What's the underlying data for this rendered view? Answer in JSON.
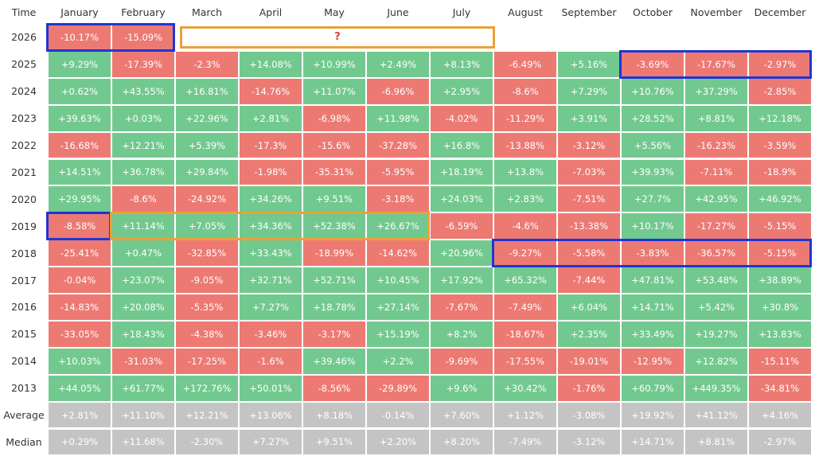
{
  "table": {
    "header": [
      "Time",
      "January",
      "February",
      "March",
      "April",
      "May",
      "June",
      "July",
      "August",
      "September",
      "October",
      "November",
      "December"
    ],
    "current_year": {
      "label": "2026",
      "cells": [
        "-10.17%",
        "-15.09%"
      ],
      "unknown": "?"
    },
    "years": [
      {
        "label": "2025",
        "cells": [
          "+9.29%",
          "-17.39%",
          "-2.3%",
          "+14.08%",
          "+10.99%",
          "+2.49%",
          "+8.13%",
          "-6.49%",
          "+5.16%",
          "-3.69%",
          "-17.67%",
          "-2.97%"
        ]
      },
      {
        "label": "2024",
        "cells": [
          "+0.62%",
          "+43.55%",
          "+16.81%",
          "-14.76%",
          "+11.07%",
          "-6.96%",
          "+2.95%",
          "-8.6%",
          "+7.29%",
          "+10.76%",
          "+37.29%",
          "-2.85%"
        ]
      },
      {
        "label": "2023",
        "cells": [
          "+39.63%",
          "+0.03%",
          "+22.96%",
          "+2.81%",
          "-6.98%",
          "+11.98%",
          "-4.02%",
          "-11.29%",
          "+3.91%",
          "+28.52%",
          "+8.81%",
          "+12.18%"
        ]
      },
      {
        "label": "2022",
        "cells": [
          "-16.68%",
          "+12.21%",
          "+5.39%",
          "-17.3%",
          "-15.6%",
          "-37.28%",
          "+16.8%",
          "-13.88%",
          "-3.12%",
          "+5.56%",
          "-16.23%",
          "-3.59%"
        ]
      },
      {
        "label": "2021",
        "cells": [
          "+14.51%",
          "+36.78%",
          "+29.84%",
          "-1.98%",
          "-35.31%",
          "-5.95%",
          "+18.19%",
          "+13.8%",
          "-7.03%",
          "+39.93%",
          "-7.11%",
          "-18.9%"
        ]
      },
      {
        "label": "2020",
        "cells": [
          "+29.95%",
          "-8.6%",
          "-24.92%",
          "+34.26%",
          "+9.51%",
          "-3.18%",
          "+24.03%",
          "+2.83%",
          "-7.51%",
          "+27.7%",
          "+42.95%",
          "+46.92%"
        ]
      },
      {
        "label": "2019",
        "cells": [
          "-8.58%",
          "+11.14%",
          "+7.05%",
          "+34.36%",
          "+52.38%",
          "+26.67%",
          "-6.59%",
          "-4.6%",
          "-13.38%",
          "+10.17%",
          "-17.27%",
          "-5.15%"
        ]
      },
      {
        "label": "2018",
        "cells": [
          "-25.41%",
          "+0.47%",
          "-32.85%",
          "+33.43%",
          "-18.99%",
          "-14.62%",
          "+20.96%",
          "-9.27%",
          "-5.58%",
          "-3.83%",
          "-36.57%",
          "-5.15%"
        ]
      },
      {
        "label": "2017",
        "cells": [
          "-0.04%",
          "+23.07%",
          "-9.05%",
          "+32.71%",
          "+52.71%",
          "+10.45%",
          "+17.92%",
          "+65.32%",
          "-7.44%",
          "+47.81%",
          "+53.48%",
          "+38.89%"
        ]
      },
      {
        "label": "2016",
        "cells": [
          "-14.83%",
          "+20.08%",
          "-5.35%",
          "+7.27%",
          "+18.78%",
          "+27.14%",
          "-7.67%",
          "-7.49%",
          "+6.04%",
          "+14.71%",
          "+5.42%",
          "+30.8%"
        ]
      },
      {
        "label": "2015",
        "cells": [
          "-33.05%",
          "+18.43%",
          "-4.38%",
          "-3.46%",
          "-3.17%",
          "+15.19%",
          "+8.2%",
          "-18.67%",
          "+2.35%",
          "+33.49%",
          "+19.27%",
          "+13.83%"
        ]
      },
      {
        "label": "2014",
        "cells": [
          "+10.03%",
          "-31.03%",
          "-17.25%",
          "-1.6%",
          "+39.46%",
          "+2.2%",
          "-9.69%",
          "-17.55%",
          "-19.01%",
          "-12.95%",
          "+12.82%",
          "-15.11%"
        ]
      },
      {
        "label": "2013",
        "cells": [
          "+44.05%",
          "+61.77%",
          "+172.76%",
          "+50.01%",
          "-8.56%",
          "-29.89%",
          "+9.6%",
          "+30.42%",
          "-1.76%",
          "+60.79%",
          "+449.35%",
          "-34.81%"
        ]
      }
    ],
    "summary": [
      {
        "label": "Average",
        "cells": [
          "+2.81%",
          "+11.10%",
          "+12.21%",
          "+13.06%",
          "+8.18%",
          "-0.14%",
          "+7.60%",
          "+1.12%",
          "-3.08%",
          "+19.92%",
          "+41.12%",
          "+4.16%"
        ]
      },
      {
        "label": "Median",
        "cells": [
          "+0.29%",
          "+11.68%",
          "-2.30%",
          "+7.27%",
          "+9.51%",
          "+2.20%",
          "+8.20%",
          "-7.49%",
          "-3.12%",
          "+14.71%",
          "+8.81%",
          "-2.97%"
        ]
      }
    ]
  }
}
